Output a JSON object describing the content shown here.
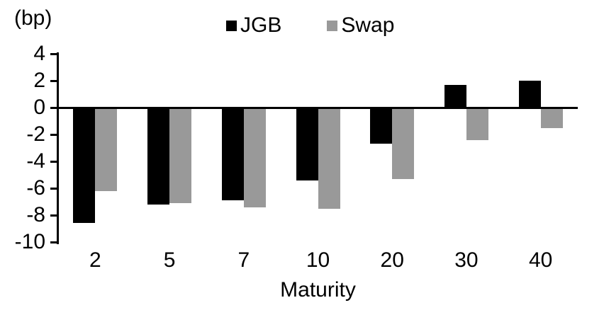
{
  "chart_data": {
    "type": "bar",
    "title": "",
    "unit_label": "(bp)",
    "xlabel": "Maturity",
    "categories": [
      "2",
      "5",
      "7",
      "10",
      "20",
      "30",
      "40"
    ],
    "series": [
      {
        "name": "JGB",
        "color": "#000000",
        "values": [
          -8.6,
          -7.2,
          -6.9,
          -5.4,
          -2.7,
          1.7,
          2.0
        ]
      },
      {
        "name": "Swap",
        "color": "#999999",
        "values": [
          -6.2,
          -7.1,
          -7.4,
          -7.5,
          -5.3,
          -2.4,
          -1.5
        ]
      }
    ],
    "y_ticks": [
      4,
      2,
      0,
      -2,
      -4,
      -6,
      -8,
      -10
    ],
    "ylim": [
      -10,
      4
    ],
    "legend_position": "top",
    "grid": false,
    "axis_color": "#000000",
    "background_color": "#ffffff"
  }
}
